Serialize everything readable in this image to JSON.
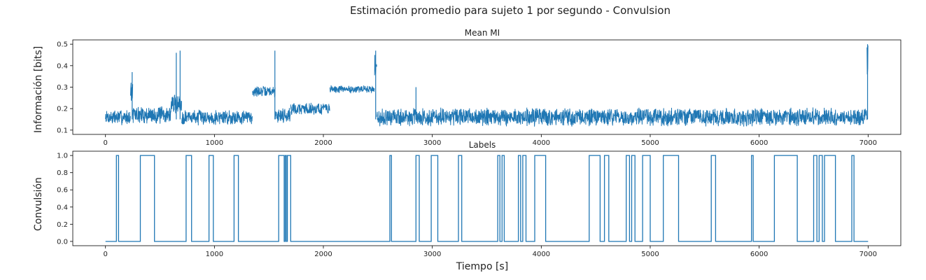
{
  "suptitle": "Estimación promedio para sujeto 1 por segundo - Convulsion",
  "line_color": "#1f77b4",
  "chart_data": [
    {
      "type": "line",
      "title": "Mean MI",
      "xlabel": "",
      "ylabel": "Información [bits]",
      "xlim": [
        -300,
        7300
      ],
      "ylim": [
        0.08,
        0.52
      ],
      "xticks": [
        0,
        1000,
        2000,
        3000,
        4000,
        5000,
        6000,
        7000
      ],
      "yticks": [
        0.1,
        0.2,
        0.3,
        0.4,
        0.5
      ],
      "ytick_labels": [
        "0.1",
        "0.2",
        "0.3",
        "0.4",
        "0.5"
      ],
      "grid": false,
      "segments": [
        {
          "x_start": 0,
          "x_end": 230,
          "level": 0.16,
          "spread": 0.03
        },
        {
          "x_start": 230,
          "x_end": 250,
          "level": 0.28,
          "spread": 0.04
        },
        {
          "x_start": 250,
          "x_end": 600,
          "level": 0.17,
          "spread": 0.035
        },
        {
          "x_start": 600,
          "x_end": 700,
          "level": 0.22,
          "spread": 0.04
        },
        {
          "x_start": 700,
          "x_end": 1350,
          "level": 0.16,
          "spread": 0.03
        },
        {
          "x_start": 1350,
          "x_end": 1560,
          "level": 0.28,
          "spread": 0.02
        },
        {
          "x_start": 1560,
          "x_end": 1700,
          "level": 0.17,
          "spread": 0.03
        },
        {
          "x_start": 1700,
          "x_end": 2060,
          "level": 0.2,
          "spread": 0.025
        },
        {
          "x_start": 2060,
          "x_end": 2470,
          "level": 0.29,
          "spread": 0.015
        },
        {
          "x_start": 2470,
          "x_end": 2490,
          "level": 0.4,
          "spread": 0.05
        },
        {
          "x_start": 2490,
          "x_end": 6990,
          "level": 0.16,
          "spread": 0.035
        },
        {
          "x_start": 6990,
          "x_end": 7000,
          "level": 0.41,
          "spread": 0.08
        }
      ],
      "spikes": [
        {
          "x": 245,
          "y": 0.37
        },
        {
          "x": 650,
          "y": 0.46
        },
        {
          "x": 685,
          "y": 0.47
        },
        {
          "x": 1555,
          "y": 0.47
        },
        {
          "x": 2480,
          "y": 0.47
        },
        {
          "x": 2850,
          "y": 0.3
        },
        {
          "x": 6995,
          "y": 0.5
        }
      ]
    },
    {
      "type": "line",
      "title": "Labels",
      "xlabel": "Tiempo [s]",
      "ylabel": "Convulsión",
      "xlim": [
        -300,
        7300
      ],
      "ylim": [
        -0.05,
        1.05
      ],
      "xticks": [
        0,
        1000,
        2000,
        3000,
        4000,
        5000,
        6000,
        7000
      ],
      "yticks": [
        0.0,
        0.2,
        0.4,
        0.6,
        0.8,
        1.0
      ],
      "ytick_labels": [
        "0.0",
        "0.2",
        "0.4",
        "0.6",
        "0.8",
        "1.0"
      ],
      "grid": false,
      "on_intervals": [
        [
          100,
          120
        ],
        [
          320,
          450
        ],
        [
          740,
          790
        ],
        [
          950,
          990
        ],
        [
          1180,
          1220
        ],
        [
          1590,
          1640
        ],
        [
          1650,
          1660
        ],
        [
          1670,
          1700
        ],
        [
          2610,
          2625
        ],
        [
          2850,
          2880
        ],
        [
          2990,
          3050
        ],
        [
          3240,
          3270
        ],
        [
          3600,
          3620
        ],
        [
          3640,
          3660
        ],
        [
          3790,
          3810
        ],
        [
          3830,
          3860
        ],
        [
          3940,
          4040
        ],
        [
          4440,
          4540
        ],
        [
          4580,
          4620
        ],
        [
          4780,
          4810
        ],
        [
          4830,
          4860
        ],
        [
          4930,
          5000
        ],
        [
          5120,
          5260
        ],
        [
          5560,
          5600
        ],
        [
          5930,
          5945
        ],
        [
          6140,
          6350
        ],
        [
          6500,
          6530
        ],
        [
          6550,
          6580
        ],
        [
          6600,
          6700
        ],
        [
          6850,
          6870
        ]
      ]
    }
  ]
}
